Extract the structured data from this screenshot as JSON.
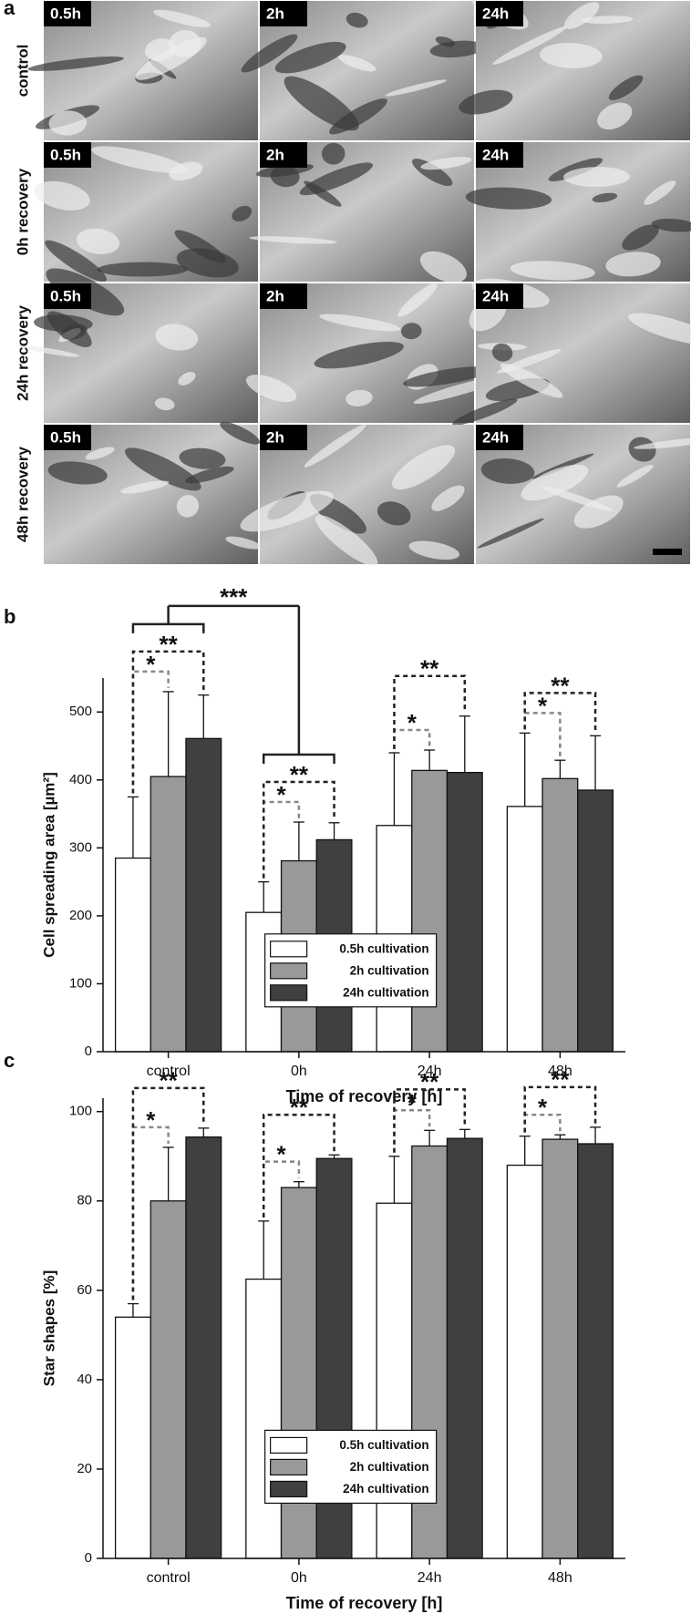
{
  "image_panel": {
    "label": "a",
    "rows": [
      {
        "label": "control",
        "tiles": [
          "0.5h",
          "2h",
          "24h"
        ]
      },
      {
        "label": "0h recovery",
        "tiles": [
          "0.5h",
          "2h",
          "24h"
        ]
      },
      {
        "label": "24h recovery",
        "tiles": [
          "0.5h",
          "2h",
          "24h"
        ]
      },
      {
        "label": "48h recovery",
        "tiles": [
          "0.5h",
          "2h",
          "24h"
        ]
      }
    ]
  },
  "chart_data": [
    {
      "type": "bar",
      "label": "b",
      "y_label": "Cell spreading area [µm²]",
      "x_label": "Time of recovery [h]",
      "categories": [
        "control",
        "0h",
        "24h",
        "48h"
      ],
      "series": [
        {
          "name": "0.5h cultivation",
          "color": "#ffffff",
          "values": [
            285,
            205,
            333,
            361
          ],
          "errors": [
            90,
            45,
            107,
            108
          ]
        },
        {
          "name": "2h cultivation",
          "color": "#999999",
          "values": [
            405,
            281,
            414,
            402
          ],
          "errors": [
            125,
            57,
            30,
            27
          ]
        },
        {
          "name": "24h cultivation",
          "color": "#404040",
          "values": [
            461,
            312,
            411,
            385
          ],
          "errors": [
            64,
            25,
            83,
            80
          ]
        }
      ],
      "ylim": [
        0,
        550
      ],
      "yticks": [
        0,
        100,
        200,
        300,
        400,
        500
      ],
      "legend": "lower center",
      "annotations": [
        {
          "text": "*",
          "groups": [
            "control"
          ],
          "series": [
            "0.5h cultivation",
            "2h cultivation"
          ],
          "style": "dashed",
          "color": "#888888"
        },
        {
          "text": "**",
          "groups": [
            "control"
          ],
          "series": [
            "0.5h cultivation",
            "24h cultivation"
          ],
          "style": "dashed",
          "color": "#222222"
        },
        {
          "text": "*",
          "groups": [
            "0h"
          ],
          "series": [
            "0.5h cultivation",
            "2h cultivation"
          ],
          "style": "dashed",
          "color": "#888888"
        },
        {
          "text": "**",
          "groups": [
            "0h"
          ],
          "series": [
            "0.5h cultivation",
            "24h cultivation"
          ],
          "style": "dashed",
          "color": "#222222"
        },
        {
          "text": "*",
          "groups": [
            "24h"
          ],
          "series": [
            "0.5h cultivation",
            "2h cultivation"
          ],
          "style": "dashed",
          "color": "#888888"
        },
        {
          "text": "**",
          "groups": [
            "24h"
          ],
          "series": [
            "0.5h cultivation",
            "24h cultivation"
          ],
          "style": "dashed",
          "color": "#222222"
        },
        {
          "text": "*",
          "groups": [
            "48h"
          ],
          "series": [
            "0.5h cultivation",
            "2h cultivation"
          ],
          "style": "dashed",
          "color": "#888888"
        },
        {
          "text": "**",
          "groups": [
            "48h"
          ],
          "series": [
            "0.5h cultivation",
            "24h cultivation"
          ],
          "style": "dashed",
          "color": "#222222"
        },
        {
          "text": "***",
          "groups": [
            "control",
            "0h"
          ],
          "style": "solid",
          "color": "#222222"
        }
      ]
    },
    {
      "type": "bar",
      "label": "c",
      "y_label": "Star shapes [%]",
      "x_label": "Time of recovery [h]",
      "categories": [
        "control",
        "0h",
        "24h",
        "48h"
      ],
      "series": [
        {
          "name": "0.5h cultivation",
          "color": "#ffffff",
          "values": [
            54,
            62.5,
            79.5,
            88
          ],
          "errors": [
            3,
            13,
            10.5,
            6.5
          ]
        },
        {
          "name": "2h cultivation",
          "color": "#999999",
          "values": [
            80,
            83,
            92.3,
            93.8
          ],
          "errors": [
            12,
            1.3,
            3.5,
            1
          ]
        },
        {
          "name": "24h cultivation",
          "color": "#404040",
          "values": [
            94.3,
            89.5,
            94,
            92.8
          ],
          "errors": [
            2,
            0.8,
            2,
            3.7
          ]
        }
      ],
      "ylim": [
        0,
        103
      ],
      "yticks": [
        0,
        20,
        40,
        60,
        80,
        100
      ],
      "legend": "lower center",
      "annotations": [
        {
          "text": "*",
          "groups": [
            "control"
          ],
          "series": [
            "0.5h cultivation",
            "2h cultivation"
          ],
          "style": "dashed",
          "color": "#888888"
        },
        {
          "text": "**",
          "groups": [
            "control"
          ],
          "series": [
            "0.5h cultivation",
            "24h cultivation"
          ],
          "style": "dashed",
          "color": "#222222"
        },
        {
          "text": "*",
          "groups": [
            "0h"
          ],
          "series": [
            "0.5h cultivation",
            "2h cultivation"
          ],
          "style": "dashed",
          "color": "#888888"
        },
        {
          "text": "**",
          "groups": [
            "0h"
          ],
          "series": [
            "0.5h cultivation",
            "24h cultivation"
          ],
          "style": "dashed",
          "color": "#222222"
        },
        {
          "text": "*",
          "groups": [
            "24h"
          ],
          "series": [
            "0.5h cultivation",
            "2h cultivation"
          ],
          "style": "dashed",
          "color": "#888888"
        },
        {
          "text": "**",
          "groups": [
            "24h"
          ],
          "series": [
            "0.5h cultivation",
            "24h cultivation"
          ],
          "style": "dashed",
          "color": "#222222"
        },
        {
          "text": "*",
          "groups": [
            "48h"
          ],
          "series": [
            "0.5h cultivation",
            "2h cultivation"
          ],
          "style": "dashed",
          "color": "#888888"
        },
        {
          "text": "**",
          "groups": [
            "48h"
          ],
          "series": [
            "0.5h cultivation",
            "24h cultivation"
          ],
          "style": "dashed",
          "color": "#222222"
        }
      ]
    }
  ]
}
